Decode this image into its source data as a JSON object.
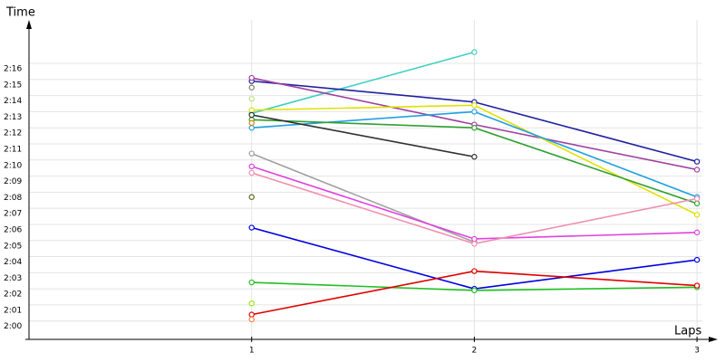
{
  "chart_data": {
    "type": "line",
    "y_label": "Time",
    "x_label": "Laps",
    "x": [
      1,
      2,
      3
    ],
    "xlim": [
      0,
      3.085
    ],
    "xticks": [
      1,
      2,
      3
    ],
    "ylim": [
      118.86,
      138.7
    ],
    "yticks": [
      {
        "value": 120,
        "label": "2:00"
      },
      {
        "value": 121,
        "label": "2:01"
      },
      {
        "value": 122,
        "label": "2:02"
      },
      {
        "value": 123,
        "label": "2:03"
      },
      {
        "value": 124,
        "label": "2:04"
      },
      {
        "value": 125,
        "label": "2:05"
      },
      {
        "value": 126,
        "label": "2:06"
      },
      {
        "value": 127,
        "label": "2:07"
      },
      {
        "value": 128,
        "label": "2:08"
      },
      {
        "value": 129,
        "label": "2:09"
      },
      {
        "value": 130,
        "label": "2:10"
      },
      {
        "value": 131,
        "label": "2:11"
      },
      {
        "value": 132,
        "label": "2:12"
      },
      {
        "value": 133,
        "label": "2:13"
      },
      {
        "value": 134,
        "label": "2:14"
      },
      {
        "value": 135,
        "label": "2:15"
      },
      {
        "value": 136,
        "label": "2:16"
      }
    ],
    "grid": true,
    "series": [
      {
        "color": "#40d0c0",
        "values": [
          132.9,
          136.7,
          null
        ]
      },
      {
        "color": "#2020a0",
        "values": [
          134.9,
          133.6,
          129.9
        ]
      },
      {
        "color": "#a040a0",
        "values": [
          135.1,
          132.2,
          129.4
        ]
      },
      {
        "color": "#e0e000",
        "values": [
          133.1,
          133.4,
          126.6
        ]
      },
      {
        "color": "#20a0e0",
        "values": [
          132.0,
          133.0,
          127.7
        ]
      },
      {
        "color": "#30a030",
        "values": [
          132.5,
          132.0,
          127.3
        ]
      },
      {
        "color": "#303030",
        "values": [
          132.8,
          130.2,
          null
        ]
      },
      {
        "color": "#a0a0a0",
        "values": [
          130.4,
          124.9,
          null
        ]
      },
      {
        "color": "#e040e0",
        "values": [
          129.6,
          125.1,
          125.5
        ]
      },
      {
        "color": "#f090b0",
        "values": [
          129.2,
          124.8,
          127.6
        ]
      },
      {
        "color": "#0000e0",
        "values": [
          125.8,
          122.0,
          123.8
        ]
      },
      {
        "color": "#20c020",
        "values": [
          122.4,
          121.9,
          122.1
        ]
      },
      {
        "color": "#e00000",
        "values": [
          120.4,
          123.1,
          122.2
        ]
      },
      {
        "color": "#808060",
        "values": [
          134.5,
          null,
          null
        ]
      },
      {
        "color": "#c0e080",
        "values": [
          133.8,
          null,
          null
        ]
      },
      {
        "color": "#e08000",
        "values": [
          132.3,
          null,
          null
        ]
      },
      {
        "color": "#606020",
        "values": [
          127.7,
          null,
          null
        ]
      },
      {
        "color": "#a0e000",
        "values": [
          121.1,
          null,
          null
        ]
      },
      {
        "color": "#ff8040",
        "values": [
          120.1,
          null,
          null
        ]
      }
    ]
  }
}
